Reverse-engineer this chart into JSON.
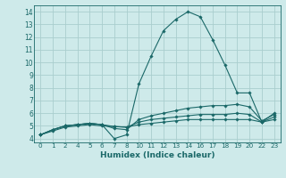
{
  "xlabel": "Humidex (Indice chaleur)",
  "background_color": "#ceeaea",
  "grid_color": "#aacece",
  "line_color": "#1a6868",
  "xtick_labels": [
    "0",
    "1",
    "2",
    "4",
    "5",
    "6",
    "7",
    "8",
    "10",
    "11",
    "12",
    "13",
    "14",
    "16",
    "17",
    "18",
    "19",
    "20",
    "22",
    "23"
  ],
  "ytick_labels": [
    "4",
    "5",
    "6",
    "7",
    "8",
    "9",
    "10",
    "11",
    "12",
    "13",
    "14"
  ],
  "ylim": [
    3.7,
    14.5
  ],
  "lines": [
    {
      "y": [
        4.3,
        4.7,
        5.0,
        5.1,
        5.2,
        5.1,
        4.0,
        4.3,
        8.3,
        10.5,
        12.5,
        13.4,
        14.0,
        13.6,
        11.8,
        9.8,
        7.6,
        7.6,
        5.3,
        6.0
      ]
    },
    {
      "y": [
        4.3,
        4.7,
        5.0,
        5.1,
        5.2,
        5.1,
        4.8,
        4.7,
        5.5,
        5.8,
        6.0,
        6.2,
        6.4,
        6.5,
        6.6,
        6.6,
        6.7,
        6.5,
        5.4,
        5.9
      ]
    },
    {
      "y": [
        4.3,
        4.7,
        5.0,
        5.1,
        5.2,
        5.1,
        4.95,
        4.9,
        5.3,
        5.5,
        5.6,
        5.7,
        5.8,
        5.9,
        5.9,
        5.9,
        6.0,
        5.9,
        5.3,
        5.7
      ]
    },
    {
      "y": [
        4.3,
        4.6,
        4.9,
        5.0,
        5.1,
        5.0,
        4.95,
        4.9,
        5.1,
        5.2,
        5.3,
        5.4,
        5.5,
        5.5,
        5.5,
        5.5,
        5.5,
        5.5,
        5.3,
        5.5
      ]
    }
  ]
}
